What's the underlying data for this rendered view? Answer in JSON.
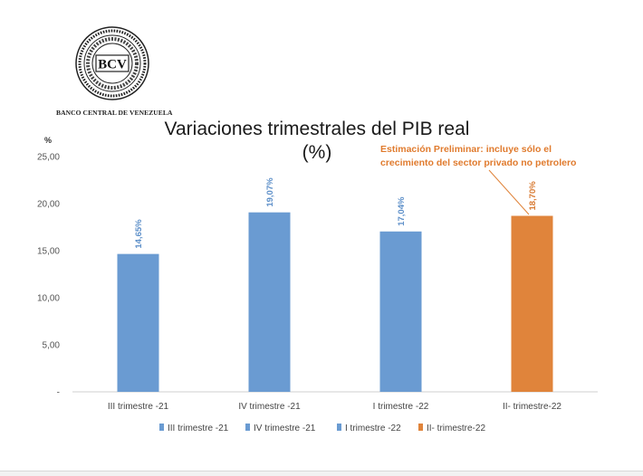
{
  "header": {
    "logo_text": "BCV",
    "bank_name": "BANCO CENTRAL DE VENEZUELA"
  },
  "annotation": {
    "line1": "Estimación Preliminar: incluye sólo el",
    "line2": "crecimiento del sector privado no petrolero"
  },
  "colors": {
    "blue": "#6a9bd2",
    "orange": "#e0843b",
    "blue_label": "#5b8ec8",
    "orange_label": "#d87a32"
  },
  "chart_data": {
    "type": "bar",
    "title": "Variaciones trimestrales del PIB real",
    "subtitle": "(%)",
    "ylabel": "%",
    "ylim": [
      0,
      25
    ],
    "yticks": [
      0,
      5,
      10,
      15,
      20,
      25
    ],
    "ytick_labels": [
      "-",
      "5,00",
      "10,00",
      "15,00",
      "20,00",
      "25,00"
    ],
    "grid": false,
    "legend_position": "bottom",
    "categories": [
      "III trimestre -21",
      "IV trimestre -21",
      "I trimestre -22",
      "II- trimestre-22"
    ],
    "values": [
      14.65,
      19.07,
      17.04,
      18.7
    ],
    "data_labels": [
      "14,65%",
      "19,07%",
      "17,04%",
      "18,70%"
    ],
    "bar_colors": [
      "blue",
      "blue",
      "blue",
      "orange"
    ],
    "legend": [
      "III trimestre -21",
      "IV trimestre -21",
      "I trimestre -22",
      "II- trimestre-22"
    ]
  }
}
